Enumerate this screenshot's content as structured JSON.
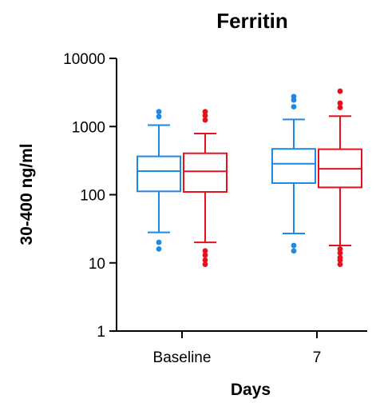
{
  "chart_data": {
    "type": "box",
    "title": "Ferritin",
    "xlabel": "Days",
    "ylabel": "30-400 ng/ml",
    "y_scale": "log",
    "ylim": [
      1,
      10000
    ],
    "y_ticks": [
      1,
      10,
      100,
      1000,
      10000
    ],
    "y_tick_labels": [
      "1",
      "10",
      "100",
      "1000",
      "10000"
    ],
    "categories": [
      "Baseline",
      "7"
    ],
    "legend": "none",
    "grid": false,
    "series": [
      {
        "color": "#1E88E5",
        "boxes": [
          {
            "category": "Baseline",
            "whisker_low": 28,
            "q1": 112,
            "median": 222,
            "q3": 365,
            "whisker_high": 1050,
            "outliers": [
              20,
              16,
              1400,
              1650
            ]
          },
          {
            "category": "7",
            "whisker_low": 27,
            "q1": 148,
            "median": 285,
            "q3": 470,
            "whisker_high": 1270,
            "outliers": [
              18,
              15,
              1950,
              2450,
              2750
            ]
          }
        ]
      },
      {
        "color": "#E8101C",
        "boxes": [
          {
            "category": "Baseline",
            "whisker_low": 20,
            "q1": 110,
            "median": 220,
            "q3": 405,
            "whisker_high": 790,
            "outliers": [
              15,
              13,
              11,
              9.5,
              1250,
              1450,
              1650
            ]
          },
          {
            "category": "7",
            "whisker_low": 18,
            "q1": 128,
            "median": 240,
            "q3": 465,
            "whisker_high": 1420,
            "outliers": [
              16,
              14,
              12,
              11,
              9.5,
              1900,
              2200,
              3300
            ]
          }
        ]
      }
    ]
  }
}
